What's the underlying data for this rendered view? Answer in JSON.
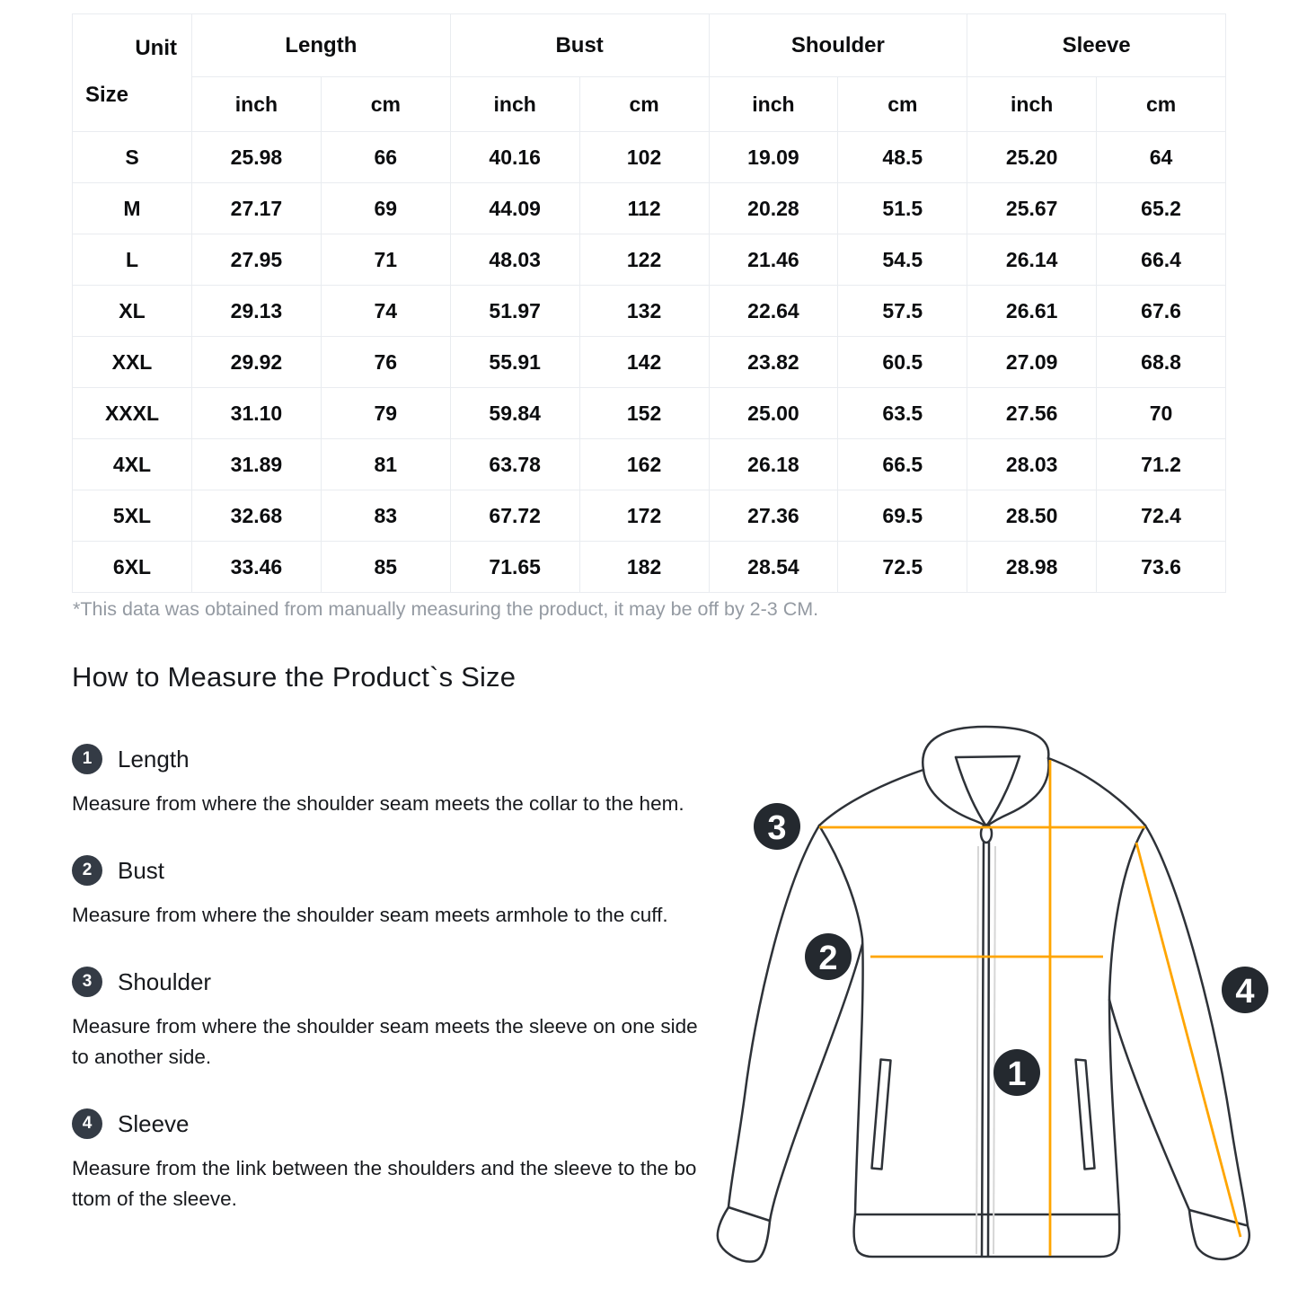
{
  "table": {
    "corner": {
      "unit": "Unit",
      "size": "Size"
    },
    "groups": [
      {
        "label": "Length"
      },
      {
        "label": "Bust"
      },
      {
        "label": "Shoulder"
      },
      {
        "label": "Sleeve"
      }
    ],
    "unit_labels": {
      "inch": "inch",
      "cm": "cm"
    },
    "rows": [
      {
        "size": "S",
        "length_inch": "25.98",
        "length_cm": "66",
        "bust_inch": "40.16",
        "bust_cm": "102",
        "shoulder_inch": "19.09",
        "shoulder_cm": "48.5",
        "sleeve_inch": "25.20",
        "sleeve_cm": "64"
      },
      {
        "size": "M",
        "length_inch": "27.17",
        "length_cm": "69",
        "bust_inch": "44.09",
        "bust_cm": "112",
        "shoulder_inch": "20.28",
        "shoulder_cm": "51.5",
        "sleeve_inch": "25.67",
        "sleeve_cm": "65.2"
      },
      {
        "size": "L",
        "length_inch": "27.95",
        "length_cm": "71",
        "bust_inch": "48.03",
        "bust_cm": "122",
        "shoulder_inch": "21.46",
        "shoulder_cm": "54.5",
        "sleeve_inch": "26.14",
        "sleeve_cm": "66.4"
      },
      {
        "size": "XL",
        "length_inch": "29.13",
        "length_cm": "74",
        "bust_inch": "51.97",
        "bust_cm": "132",
        "shoulder_inch": "22.64",
        "shoulder_cm": "57.5",
        "sleeve_inch": "26.61",
        "sleeve_cm": "67.6"
      },
      {
        "size": "XXL",
        "length_inch": "29.92",
        "length_cm": "76",
        "bust_inch": "55.91",
        "bust_cm": "142",
        "shoulder_inch": "23.82",
        "shoulder_cm": "60.5",
        "sleeve_inch": "27.09",
        "sleeve_cm": "68.8"
      },
      {
        "size": "XXXL",
        "length_inch": "31.10",
        "length_cm": "79",
        "bust_inch": "59.84",
        "bust_cm": "152",
        "shoulder_inch": "25.00",
        "shoulder_cm": "63.5",
        "sleeve_inch": "27.56",
        "sleeve_cm": "70"
      },
      {
        "size": "4XL",
        "length_inch": "31.89",
        "length_cm": "81",
        "bust_inch": "63.78",
        "bust_cm": "162",
        "shoulder_inch": "26.18",
        "shoulder_cm": "66.5",
        "sleeve_inch": "28.03",
        "sleeve_cm": "71.2"
      },
      {
        "size": "5XL",
        "length_inch": "32.68",
        "length_cm": "83",
        "bust_inch": "67.72",
        "bust_cm": "172",
        "shoulder_inch": "27.36",
        "shoulder_cm": "69.5",
        "sleeve_inch": "28.50",
        "sleeve_cm": "72.4"
      },
      {
        "size": "6XL",
        "length_inch": "33.46",
        "length_cm": "85",
        "bust_inch": "71.65",
        "bust_cm": "182",
        "shoulder_inch": "28.54",
        "shoulder_cm": "72.5",
        "sleeve_inch": "28.98",
        "sleeve_cm": "73.6"
      }
    ],
    "footnote": "*This data was obtained from manually measuring the product, it may be off by 2-3 CM."
  },
  "guide": {
    "heading": "How to Measure the Product`s Size",
    "items": [
      {
        "num": "1",
        "title": "Length",
        "desc": "Measure from where the shoulder seam meets the collar to the hem."
      },
      {
        "num": "2",
        "title": "Bust",
        "desc": "Measure from where the shoulder seam meets armhole to the cuff."
      },
      {
        "num": "3",
        "title": "Shoulder",
        "desc": "Measure from where the shoulder seam meets the sleeve on one side to another side."
      },
      {
        "num": "4",
        "title": "Sleeve",
        "desc": "Measure from the link between the shoulders and the sleeve to the bottom of the sleeve."
      }
    ]
  },
  "diagram": {
    "markers": [
      {
        "num": "1"
      },
      {
        "num": "2"
      },
      {
        "num": "3"
      },
      {
        "num": "4"
      }
    ],
    "colors": {
      "measure_line": "#FFA500",
      "outline": "#2e3238",
      "marker_bg": "#24292f",
      "marker_fg": "#ffffff"
    }
  }
}
